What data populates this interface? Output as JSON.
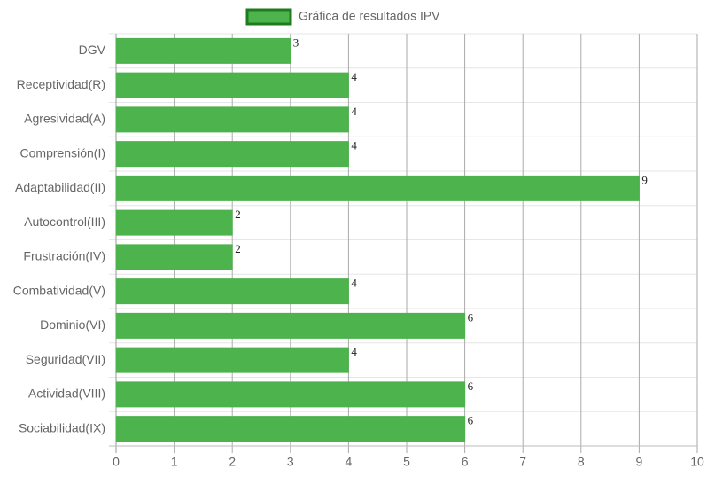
{
  "chart_data": {
    "type": "bar",
    "orientation": "horizontal",
    "categories": [
      "DGV",
      "Receptividad(R)",
      "Agresividad(A)",
      "Comprensión(I)",
      "Adaptabilidad(II)",
      "Autocontrol(III)",
      "Frustración(IV)",
      "Combatividad(V)",
      "Dominio(VI)",
      "Seguridad(VII)",
      "Actividad(VIII)",
      "Sociabilidad(IX)"
    ],
    "series": [
      {
        "name": "Gráfica de resultados IPV",
        "color": "#4db34d",
        "border_color": "#1e7b1e",
        "values": [
          3,
          4,
          4,
          4,
          9,
          2,
          2,
          4,
          6,
          4,
          6,
          6
        ]
      }
    ],
    "xlim": [
      0,
      10
    ],
    "xticks": [
      0,
      1,
      2,
      3,
      4,
      5,
      6,
      7,
      8,
      9,
      10
    ],
    "grid": true,
    "legend": "top"
  }
}
